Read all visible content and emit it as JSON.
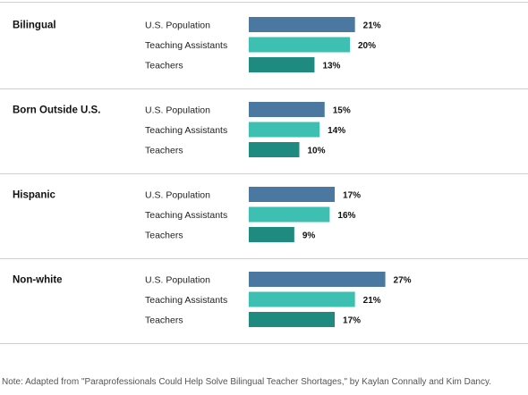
{
  "chart_data": {
    "type": "bar",
    "orientation": "horizontal",
    "categories": [
      "U.S. Population",
      "Teaching Assistants",
      "Teachers"
    ],
    "groups": [
      {
        "label": "Bilingual",
        "values": [
          21,
          20,
          13
        ]
      },
      {
        "label": "Born Outside U.S.",
        "values": [
          15,
          14,
          10
        ]
      },
      {
        "label": "Hispanic",
        "values": [
          17,
          16,
          9
        ]
      },
      {
        "label": "Non-white",
        "values": [
          27,
          21,
          17
        ]
      }
    ],
    "value_suffix": "%",
    "colors": [
      "#4a78a0",
      "#3dbfb2",
      "#1f8a80"
    ],
    "grid": false
  },
  "note": "Note: Adapted from \"Paraprofessionals Could Help Solve Bilingual Teacher Shortages,\" by Kaylan Connally and Kim Dancy."
}
